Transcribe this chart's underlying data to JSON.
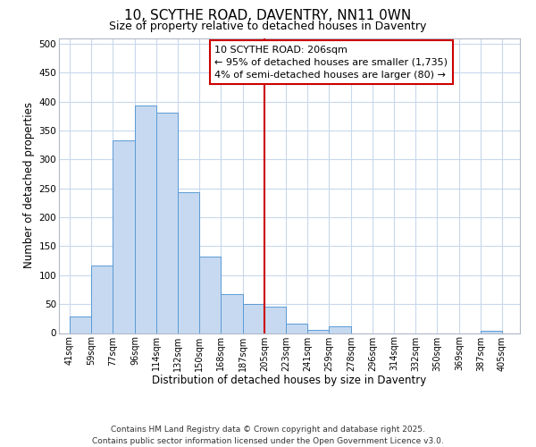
{
  "title": "10, SCYTHE ROAD, DAVENTRY, NN11 0WN",
  "subtitle": "Size of property relative to detached houses in Daventry",
  "xlabel": "Distribution of detached houses by size in Daventry",
  "ylabel": "Number of detached properties",
  "bar_left_edges": [
    41,
    59,
    77,
    96,
    114,
    132,
    150,
    168,
    187,
    205,
    223,
    241,
    259,
    278,
    296,
    314,
    332,
    350,
    369,
    387
  ],
  "bar_heights": [
    28,
    117,
    333,
    393,
    381,
    243,
    132,
    68,
    50,
    45,
    16,
    5,
    11,
    0,
    0,
    0,
    0,
    0,
    0,
    4
  ],
  "bar_widths": [
    18,
    18,
    19,
    18,
    18,
    18,
    18,
    19,
    18,
    18,
    18,
    18,
    19,
    18,
    18,
    18,
    18,
    19,
    18,
    18
  ],
  "tick_labels": [
    "41sqm",
    "59sqm",
    "77sqm",
    "96sqm",
    "114sqm",
    "132sqm",
    "150sqm",
    "168sqm",
    "187sqm",
    "205sqm",
    "223sqm",
    "241sqm",
    "259sqm",
    "278sqm",
    "296sqm",
    "314sqm",
    "332sqm",
    "350sqm",
    "369sqm",
    "387sqm",
    "405sqm"
  ],
  "tick_positions": [
    41,
    59,
    77,
    96,
    114,
    132,
    150,
    168,
    187,
    205,
    223,
    241,
    259,
    278,
    296,
    314,
    332,
    350,
    369,
    387,
    405
  ],
  "bar_color": "#c6d9f0",
  "bar_edge_color": "#5b9bd5",
  "vline_x": 205,
  "vline_color": "#cc0000",
  "annotation_line1": "10 SCYTHE ROAD: 206sqm",
  "annotation_line2": "← 95% of detached houses are smaller (1,735)",
  "annotation_line3": "4% of semi-detached houses are larger (80) →",
  "annotation_box_color": "#cc0000",
  "annotation_text_color": "#000000",
  "ylim": [
    0,
    510
  ],
  "xlim": [
    32,
    420
  ],
  "grid_color": "#c8d8ec",
  "background_color": "#ffffff",
  "footer_line1": "Contains HM Land Registry data © Crown copyright and database right 2025.",
  "footer_line2": "Contains public sector information licensed under the Open Government Licence v3.0.",
  "title_fontsize": 11,
  "subtitle_fontsize": 9,
  "xlabel_fontsize": 8.5,
  "ylabel_fontsize": 8.5,
  "tick_fontsize": 7,
  "annotation_fontsize": 8,
  "footer_fontsize": 6.5
}
